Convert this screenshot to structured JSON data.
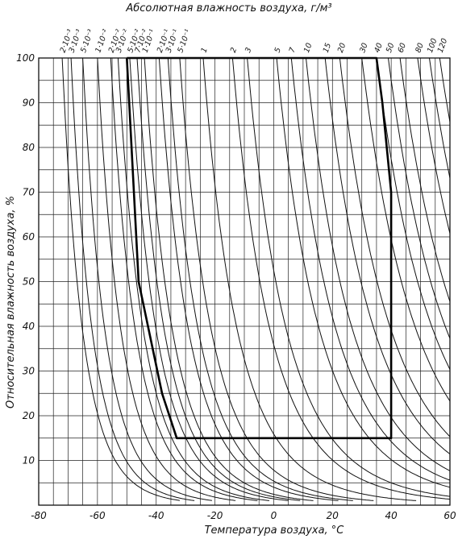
{
  "chart_data": {
    "type": "line",
    "title": "Абсолютная влажность воздуха, г/м³",
    "xlabel": "Температура воздуха, °C",
    "ylabel": "Относительная влажность воздуха, %",
    "xlim": [
      -80,
      60
    ],
    "ylim": [
      0,
      100
    ],
    "x_ticks": [
      {
        "value": -80,
        "label": "-80"
      },
      {
        "value": -60,
        "label": "-60"
      },
      {
        "value": -40,
        "label": "-40"
      },
      {
        "value": -20,
        "label": "-20"
      },
      {
        "value": 0,
        "label": "0"
      },
      {
        "value": 20,
        "label": "20"
      },
      {
        "value": 40,
        "label": "40"
      },
      {
        "value": 60,
        "label": "60"
      }
    ],
    "y_ticks": [
      {
        "value": 10,
        "label": "10"
      },
      {
        "value": 20,
        "label": "20"
      },
      {
        "value": 30,
        "label": "30"
      },
      {
        "value": 40,
        "label": "40"
      },
      {
        "value": 50,
        "label": "50"
      },
      {
        "value": 60,
        "label": "60"
      },
      {
        "value": 70,
        "label": "70"
      },
      {
        "value": 80,
        "label": "80"
      },
      {
        "value": 90,
        "label": "90"
      },
      {
        "value": 100,
        "label": "100"
      }
    ],
    "grid": true,
    "absolute_humidity_curves": [
      {
        "label": "2·10⁻³",
        "value": 0.002,
        "t_at_100": -72
      },
      {
        "label": "3·10⁻³",
        "value": 0.003,
        "t_at_100": -69
      },
      {
        "label": "5·10⁻³",
        "value": 0.005,
        "t_at_100": -65
      },
      {
        "label": "1·10⁻²",
        "value": 0.01,
        "t_at_100": -60
      },
      {
        "label": "2·10⁻²",
        "value": 0.02,
        "t_at_100": -55.5
      },
      {
        "label": "3·10⁻²",
        "value": 0.03,
        "t_at_100": -53
      },
      {
        "label": "5·10⁻²",
        "value": 0.05,
        "t_at_100": -49
      },
      {
        "label": "7·10⁻²",
        "value": 0.07,
        "t_at_100": -46.5
      },
      {
        "label": "1·10⁻¹",
        "value": 0.1,
        "t_at_100": -44
      },
      {
        "label": "2·10⁻¹",
        "value": 0.2,
        "t_at_100": -39
      },
      {
        "label": "3·10⁻¹",
        "value": 0.3,
        "t_at_100": -36
      },
      {
        "label": "5·10⁻¹",
        "value": 0.5,
        "t_at_100": -32
      },
      {
        "label": "1",
        "value": 1,
        "t_at_100": -24
      },
      {
        "label": "2",
        "value": 2,
        "t_at_100": -14
      },
      {
        "label": "3",
        "value": 3,
        "t_at_100": -9
      },
      {
        "label": "5",
        "value": 5,
        "t_at_100": 1
      },
      {
        "label": "7",
        "value": 7,
        "t_at_100": 6
      },
      {
        "label": "10",
        "value": 10,
        "t_at_100": 11
      },
      {
        "label": "15",
        "value": 15,
        "t_at_100": 17.5
      },
      {
        "label": "20",
        "value": 20,
        "t_at_100": 22.5
      },
      {
        "label": "30",
        "value": 30,
        "t_at_100": 30
      },
      {
        "label": "40",
        "value": 40,
        "t_at_100": 35
      },
      {
        "label": "50",
        "value": 50,
        "t_at_100": 39
      },
      {
        "label": "60",
        "value": 60,
        "t_at_100": 43
      },
      {
        "label": "80",
        "value": 80,
        "t_at_100": 49
      },
      {
        "label": "100",
        "value": 100,
        "t_at_100": 53
      },
      {
        "label": "120",
        "value": 120,
        "t_at_100": 56.5
      }
    ],
    "operating_region": {
      "points": [
        [
          -50,
          100
        ],
        [
          -46,
          50
        ],
        [
          -38,
          25
        ],
        [
          -33,
          15
        ],
        [
          40,
          15
        ],
        [
          40,
          70
        ],
        [
          37,
          90
        ],
        [
          35,
          100
        ],
        [
          -50,
          100
        ]
      ]
    }
  }
}
